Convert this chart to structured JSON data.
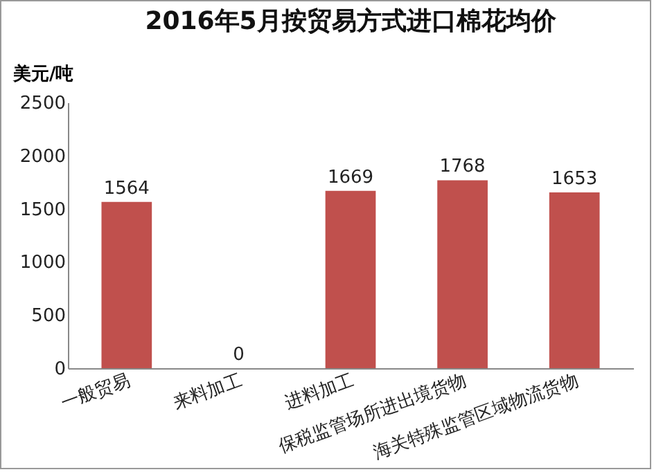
{
  "chart_data": {
    "type": "bar",
    "title": "2016年5月按贸易方式进口棉花均价",
    "ylabel": "美元/吨",
    "categories": [
      "一般贸易",
      "来料加工",
      "进料加工",
      "保税监管场所进出境货物",
      "海关特殊监管区域物流货物"
    ],
    "values": [
      1564,
      0,
      1669,
      1768,
      1653
    ],
    "color": "#c0504d",
    "ylim": [
      0,
      2500
    ],
    "yticks": [
      0,
      500,
      1000,
      1500,
      2000,
      2500
    ],
    "data_labels": true
  }
}
